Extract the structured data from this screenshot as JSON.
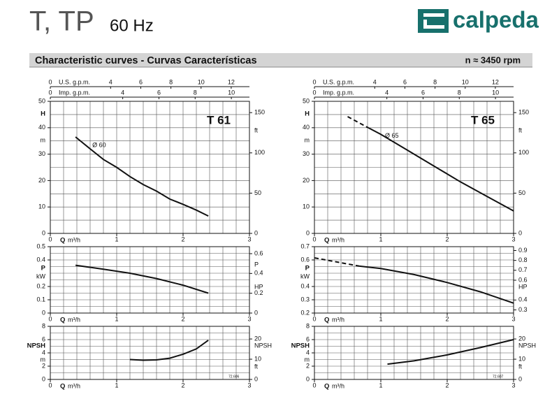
{
  "header": {
    "title": "T, TP",
    "subtitle": "60 Hz",
    "brand": "calpeda"
  },
  "banner": {
    "title": "Characteristic curves  -  Curvas Características",
    "speed": "n ≈ 3450 rpm"
  },
  "chart_data": [
    {
      "type": "line",
      "title": "T 61",
      "xlabel": "Q",
      "xunit": "m³/h",
      "xlim": [
        0,
        3
      ],
      "xticks": [
        0,
        1,
        2,
        3
      ],
      "x2label": "U.S. g.p.m.",
      "x2lim": [
        0,
        13.21
      ],
      "x2ticks": [
        0,
        4,
        6,
        8,
        10,
        12
      ],
      "x3label": "Imp. g.p.m.",
      "x3lim": [
        0,
        11.0
      ],
      "x3ticks": [
        0,
        4,
        6,
        8,
        10
      ],
      "ylabel": "H",
      "yunit": "m",
      "ylim": [
        0,
        50
      ],
      "yticks": [
        0,
        10,
        20,
        30,
        40,
        50
      ],
      "y2unit": "ft",
      "y2lim": [
        0,
        164.04
      ],
      "y2ticks": [
        0,
        50,
        100,
        150
      ],
      "grid": true,
      "grid_step": {
        "x": 0.2,
        "y": 5
      },
      "color": "#111111",
      "series": [
        {
          "name": "Ø 60",
          "x": [
            0.38,
            0.6,
            0.8,
            1.0,
            1.2,
            1.4,
            1.6,
            1.8,
            2.0,
            2.2,
            2.38
          ],
          "values": [
            36.5,
            32,
            28,
            25,
            21.5,
            18.5,
            16,
            13,
            11,
            8.8,
            6.6
          ]
        }
      ]
    },
    {
      "type": "line",
      "xlabel": "Q",
      "xunit": "m³/h",
      "xlim": [
        0,
        3
      ],
      "xticks": [
        0,
        1,
        2,
        3
      ],
      "ylabel": "P",
      "yunit": "kW",
      "ylim": [
        0,
        0.5
      ],
      "yticks": [
        0,
        0.1,
        0.2,
        0.4,
        0.5
      ],
      "y2label": "P",
      "y2unit": "HP",
      "y2lim": [
        0,
        0.6705
      ],
      "y2ticks": [
        0,
        0.2,
        0.4,
        0.6
      ],
      "grid": true,
      "grid_step": {
        "x": 0.2,
        "y": 0.05
      },
      "color": "#111111",
      "series": [
        {
          "x": [
            0.38,
            0.8,
            1.2,
            1.6,
            2.0,
            2.38
          ],
          "values": [
            0.36,
            0.33,
            0.3,
            0.26,
            0.21,
            0.15
          ]
        }
      ]
    },
    {
      "type": "line",
      "xlabel": "Q",
      "xunit": "m³/h",
      "xlim": [
        0,
        3
      ],
      "xticks": [
        0,
        1,
        2,
        3
      ],
      "ylabel": "NPSH",
      "yunit": "m",
      "ylim": [
        0,
        8
      ],
      "yticks": [
        0,
        2,
        4,
        6,
        8
      ],
      "y2label": "NPSH",
      "y2unit": "ft",
      "y2lim": [
        0,
        26.25
      ],
      "y2ticks": [
        0,
        10,
        20
      ],
      "grid": true,
      "grid_step": {
        "x": 0.2,
        "y": 1
      },
      "color": "#111111",
      "code": "72.606",
      "series": [
        {
          "x": [
            1.2,
            1.4,
            1.6,
            1.8,
            2.0,
            2.2,
            2.38
          ],
          "values": [
            3.0,
            2.9,
            2.95,
            3.2,
            3.8,
            4.6,
            5.9
          ]
        }
      ]
    },
    {
      "type": "line",
      "title": "T 65",
      "xlabel": "Q",
      "xunit": "m³/h",
      "xlim": [
        0,
        3
      ],
      "xticks": [
        0,
        1,
        2,
        3
      ],
      "x2label": "U.S. g.p.m.",
      "x2lim": [
        0,
        13.21
      ],
      "x2ticks": [
        0,
        4,
        6,
        8,
        10,
        12
      ],
      "x3label": "Imp. g.p.m.",
      "x3lim": [
        0,
        11.0
      ],
      "x3ticks": [
        0,
        4,
        6,
        8,
        10
      ],
      "ylabel": "H",
      "yunit": "m",
      "ylim": [
        0,
        50
      ],
      "yticks": [
        0,
        10,
        20,
        30,
        40,
        50
      ],
      "y2unit": "ft",
      "y2lim": [
        0,
        164.04
      ],
      "y2ticks": [
        0,
        50,
        100,
        150
      ],
      "grid": true,
      "grid_step": {
        "x": 0.2,
        "y": 5
      },
      "color": "#111111",
      "series": [
        {
          "style": "dashed",
          "x": [
            0.5,
            0.81
          ],
          "values": [
            44.2,
            40
          ]
        },
        {
          "name": "Ø 65",
          "x": [
            0.81,
            1.0,
            1.4,
            1.8,
            2.2,
            2.6,
            3.0
          ],
          "values": [
            40,
            37.5,
            31.5,
            25.5,
            19.5,
            14,
            8.5
          ]
        }
      ]
    },
    {
      "type": "line",
      "xlabel": "Q",
      "xunit": "m³/h",
      "xlim": [
        0,
        3
      ],
      "xticks": [
        0,
        1,
        2,
        3
      ],
      "ylabel": "P",
      "yunit": "kW",
      "ylim": [
        0.2,
        0.7
      ],
      "yticks": [
        0.2,
        0.3,
        0.4,
        0.6,
        0.7
      ],
      "y2unit": "HP",
      "y2lim": [
        0.2682,
        0.9387
      ],
      "y2ticks": [
        0.3,
        0.4,
        0.6,
        0.7,
        0.8,
        0.9
      ],
      "grid": true,
      "grid_step": {
        "x": 0.2,
        "y": 0.05
      },
      "color": "#111111",
      "series": [
        {
          "style": "dashed",
          "x": [
            0,
            0.68
          ],
          "values": [
            0.616,
            0.553
          ]
        },
        {
          "x": [
            0.68,
            1.0,
            1.5,
            2.0,
            2.5,
            3.0
          ],
          "values": [
            0.553,
            0.535,
            0.49,
            0.43,
            0.36,
            0.275
          ]
        }
      ]
    },
    {
      "type": "line",
      "xlabel": "Q",
      "xunit": "m³/h",
      "xlim": [
        0,
        3
      ],
      "xticks": [
        0,
        1,
        2,
        3
      ],
      "ylabel": "NPSH",
      "yunit": "m",
      "ylim": [
        0,
        8
      ],
      "yticks": [
        0,
        2,
        4,
        6,
        8
      ],
      "y2label": "NPSH",
      "y2unit": "ft",
      "y2lim": [
        0,
        26.25
      ],
      "y2ticks": [
        0,
        10,
        20
      ],
      "grid": true,
      "grid_step": {
        "x": 0.2,
        "y": 1
      },
      "color": "#111111",
      "code": "72.607",
      "series": [
        {
          "x": [
            1.1,
            1.5,
            2.0,
            2.5,
            3.0
          ],
          "values": [
            2.3,
            2.8,
            3.7,
            4.8,
            6.0
          ]
        }
      ]
    }
  ]
}
